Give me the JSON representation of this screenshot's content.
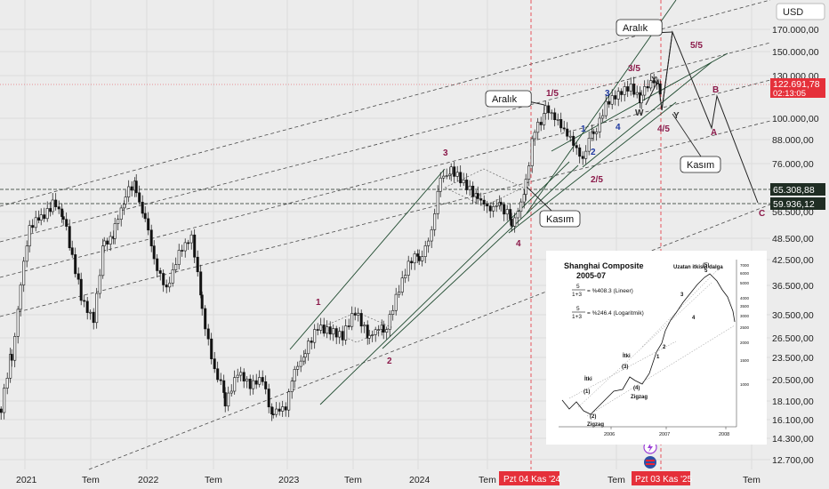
{
  "currency": "USD",
  "chart_data": {
    "type": "candlestick",
    "x_ticks": [
      "2021",
      "Tem",
      "2022",
      "Tem",
      "2023",
      "Tem",
      "2024",
      "Tem",
      "Tem",
      "Tem"
    ],
    "y_ticks": [
      "170.000,00",
      "150.000,00",
      "130.000,00",
      "100.000,00",
      "88.000,00",
      "76.000,00",
      "56.500,00",
      "48.500,00",
      "42.500,00",
      "36.500,00",
      "30.500,00",
      "26.500,00",
      "23.500,00",
      "20.500,00",
      "18.100,00",
      "16.100,00",
      "14.300,00",
      "12.700,00"
    ],
    "y_ticks_values": [
      170000,
      150000,
      130000,
      100000,
      88000,
      76000,
      56500,
      48500,
      42500,
      36500,
      30500,
      26500,
      23500,
      20500,
      18100,
      16100,
      14300,
      12700
    ],
    "price_label": "122.691,78",
    "timer_label": "02:13:05",
    "level_1": "65.308,88",
    "level_2": "59.936,12",
    "date_marker_1": "Pzt 04 Kas '24",
    "date_marker_2": "Pzt 03 Kas '25",
    "wave_labels": [
      "1",
      "2",
      "3",
      "4",
      "1/5",
      "2/5",
      "3/5",
      "4/5",
      "5/5",
      "1",
      "2",
      "3",
      "4",
      "W",
      "X",
      "Y",
      "A",
      "B",
      "C"
    ],
    "callouts": [
      "Aralık",
      "Kasım",
      "Aralık",
      "Kasım"
    ],
    "inset": {
      "title": "Shanghai Composite",
      "subtitle": "2005-07",
      "formula_lin_num": "5",
      "formula_lin_den": "1+3",
      "formula_lin_text": "= %408.3  (Lineer)",
      "formula_log_num": "5",
      "formula_log_den": "1+3",
      "formula_log_text": "= %246.4  (Logaritmik)",
      "wave_note": "Uzatan itkisel dalga",
      "labels": [
        "İtki",
        "(1)",
        "(2)",
        "Zigzag",
        "İtki",
        "(3)",
        "(4)",
        "Zigzag",
        "(5)",
        "1",
        "2",
        "3",
        "4",
        "5"
      ],
      "x_ticks": [
        "2006",
        "2007",
        "2008"
      ],
      "y_ticks": [
        "7000",
        "6000",
        "5000",
        "4000",
        "3500",
        "3000",
        "2500",
        "2000",
        "1500",
        "1000"
      ]
    }
  }
}
